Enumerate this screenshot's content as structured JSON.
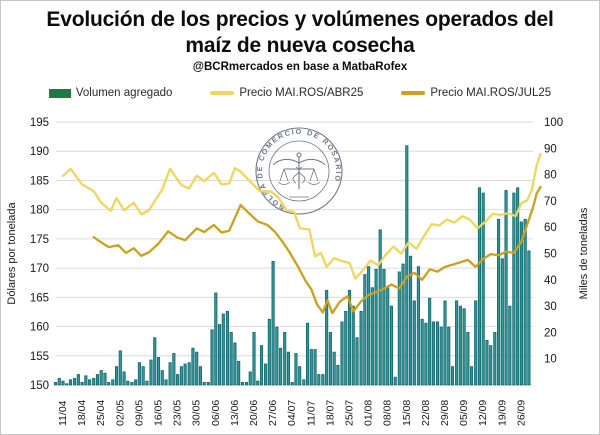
{
  "header": {
    "title_line1": "Evolución de los precios y volúmenes operados del",
    "title_line2": "maíz de nueva cosecha",
    "subtitle": "@BCRmercados en base a MatbaRofex"
  },
  "legend": [
    {
      "label": "Volumen agregado",
      "type": "bar",
      "color": "#1e7a41"
    },
    {
      "label": "Precio MAI.ROS/ABR25",
      "type": "line",
      "color": "#eed75c"
    },
    {
      "label": "Precio MAI.ROS/JUL25",
      "type": "line",
      "color": "#cda01e"
    }
  ],
  "watermark": {
    "text": "BOLSA DE COMERCIO DE ROSARIO",
    "color": "#4a5663"
  },
  "chart_data": {
    "type": "combo_bar_line",
    "title": "Evolución de los precios y volúmenes operados del maíz de nueva cosecha",
    "subtitle": "@BCRmercados en base a MatbaRofex",
    "grid": true,
    "legend_position": "top",
    "x_axis": {
      "week_labels": [
        "11/04",
        "18/04",
        "25/04",
        "02/05",
        "09/05",
        "16/05",
        "23/05",
        "30/05",
        "06/06",
        "13/06",
        "20/06",
        "27/06",
        "04/07",
        "11/07",
        "18/07",
        "25/07",
        "01/08",
        "08/08",
        "15/08",
        "22/08",
        "29/08",
        "05/09",
        "12/09",
        "19/09",
        "26/09"
      ],
      "bars_per_week": 5
    },
    "y_left": {
      "label": "Dólares por tonelada",
      "min": 150,
      "max": 195,
      "step": 5,
      "ticks": [
        150,
        155,
        160,
        165,
        170,
        175,
        180,
        185,
        190,
        195
      ]
    },
    "y_right": {
      "label": "Miles de toneladas",
      "min": 0,
      "max": 100,
      "step": 10,
      "ticks": [
        10,
        20,
        30,
        40,
        50,
        60,
        70,
        80,
        90,
        100
      ]
    },
    "bars": {
      "name": "Volumen agregado",
      "axis": "right",
      "fill": "#2f9597",
      "stroke": "#0f5f66",
      "values": [
        1,
        2.5,
        1.5,
        0.5,
        2,
        2.5,
        4,
        1,
        3.5,
        2,
        2.5,
        4,
        5.5,
        4.5,
        1,
        2,
        7,
        13,
        5,
        1.5,
        1,
        2,
        8.5,
        7,
        1.5,
        9.5,
        18,
        10.5,
        5.5,
        2,
        8.5,
        12,
        4,
        7,
        8,
        8.5,
        14,
        12.5,
        7,
        1,
        1,
        21,
        35,
        23,
        27,
        28,
        20,
        16,
        9,
        1,
        1,
        5,
        20,
        1.5,
        15,
        8,
        25,
        47,
        22,
        14,
        20,
        12.5,
        1,
        12,
        7,
        2,
        23.5,
        13.5,
        13.5,
        4,
        4,
        36,
        20,
        12.5,
        7.5,
        24,
        28,
        36,
        30,
        18,
        28,
        42,
        45,
        37,
        44,
        59,
        44,
        37,
        30,
        3,
        43,
        46,
        91,
        49,
        32,
        45,
        25,
        23.5,
        33,
        24,
        24,
        22,
        32,
        22,
        7,
        32,
        30,
        29,
        20,
        7,
        32,
        75,
        73,
        17,
        15,
        20,
        63,
        48,
        74,
        30,
        73,
        75,
        62,
        63,
        51
      ]
    },
    "series": [
      {
        "name": "Precio MAI.ROS/ABR25",
        "axis": "left",
        "color": "#eed75c",
        "x_weeks": [
          0,
          0.4,
          1,
          1.6,
          2,
          2.5,
          2.8,
          3.2,
          3.7,
          4.1,
          4.5,
          5.2,
          5.6,
          6.2,
          6.6,
          7,
          7.4,
          7.9,
          8.3,
          8.7,
          9,
          9.3,
          9.8,
          10.3,
          10.9,
          11.3,
          11.7,
          12.1,
          12.4,
          12.9,
          13.2,
          13.5,
          13.8,
          14.2,
          14.6,
          15,
          15.3,
          15.7,
          16.1,
          16.5,
          16.9,
          17.3,
          17.7,
          18.1,
          18.5,
          18.9,
          19.3,
          19.7,
          20.1,
          20.5,
          20.9,
          21.3,
          21.7,
          22.1,
          22.5,
          22.9,
          23.3,
          23.7,
          24,
          24.3,
          24.55,
          24.8,
          25
        ],
        "values": [
          185.8,
          187,
          184.3,
          183.2,
          181.2,
          179.8,
          182,
          179.9,
          181.2,
          179.2,
          179.9,
          183.5,
          187,
          184.2,
          183.6,
          185.8,
          184.9,
          186.3,
          184.3,
          184.5,
          187.1,
          186.5,
          184.8,
          183.2,
          183.1,
          182,
          179.9,
          179.6,
          176.8,
          176.6,
          172,
          172.6,
          170.2,
          171.7,
          171.2,
          170.9,
          168.2,
          169.6,
          171.3,
          170.5,
          172.3,
          173.7,
          172.5,
          174.4,
          173.3,
          175.5,
          177.5,
          177.3,
          178.3,
          177.8,
          178.9,
          178.3,
          176.8,
          177.9,
          179.3,
          179.1,
          179.4,
          178.9,
          181.1,
          181.6,
          183.4,
          187.6,
          189.5
        ]
      },
      {
        "name": "Precio MAI.ROS/JUL25",
        "axis": "left",
        "color": "#cda01e",
        "x_weeks": [
          1.6,
          2,
          2.4,
          2.9,
          3.3,
          3.7,
          4.1,
          4.5,
          5,
          5.5,
          6,
          6.4,
          7,
          7.4,
          7.9,
          8.3,
          8.7,
          9,
          9.3,
          9.7,
          10.2,
          10.7,
          11.1,
          11.5,
          11.9,
          12.3,
          12.7,
          13,
          13.3,
          13.6,
          13.85,
          14.1,
          14.5,
          14.9,
          15.2,
          15.6,
          16,
          16.4,
          16.8,
          17.2,
          17.6,
          18,
          18.4,
          18.8,
          19.2,
          19.6,
          20,
          20.4,
          20.8,
          21.2,
          21.6,
          22,
          22.4,
          22.8,
          23.2,
          23.6,
          24,
          24.3,
          24.6,
          24.8,
          25
        ],
        "values": [
          175.3,
          174.4,
          173.6,
          173.9,
          172.6,
          173.4,
          172.1,
          172.7,
          174.2,
          176.3,
          175.2,
          174.8,
          176.8,
          176.2,
          177.4,
          176.1,
          176.4,
          178.6,
          180.8,
          179.5,
          178,
          177.4,
          176.2,
          174.5,
          172.5,
          170.3,
          167.8,
          166.4,
          163.8,
          162.4,
          164.5,
          162.3,
          164.3,
          165.2,
          162.6,
          164.3,
          165.4,
          165.9,
          166.5,
          167.2,
          166.5,
          168.5,
          169.2,
          168,
          169.8,
          169.4,
          170.2,
          170.6,
          171,
          171.4,
          170.2,
          171.6,
          172.4,
          172.2,
          172.8,
          172.6,
          174.5,
          177.4,
          180.3,
          182.8,
          183.9
        ]
      }
    ]
  }
}
